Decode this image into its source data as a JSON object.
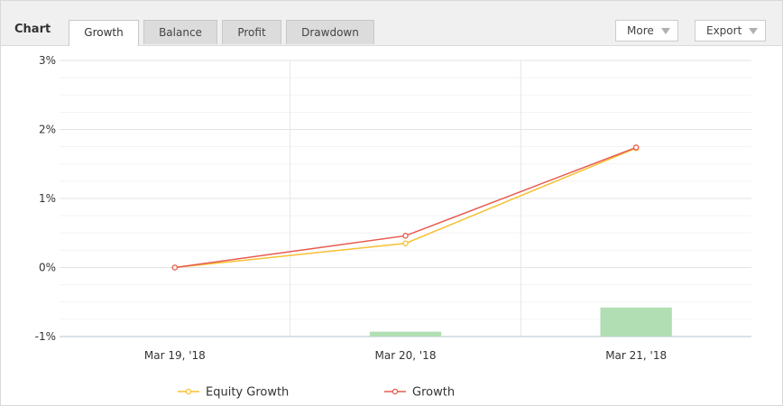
{
  "header": {
    "title": "Chart",
    "tabs": [
      {
        "label": "Growth",
        "active": true
      },
      {
        "label": "Balance",
        "active": false
      },
      {
        "label": "Profit",
        "active": false
      },
      {
        "label": "Drawdown",
        "active": false
      }
    ],
    "more_label": "More",
    "export_label": "Export"
  },
  "colors": {
    "equity": "#f5c031",
    "growth": "#e85a4f",
    "bars": "#b1deb2",
    "grid": "#e6e6e6",
    "axis": "#b7c6d0"
  },
  "chart_data": {
    "type": "line",
    "categories": [
      "Mar 19, '18",
      "Mar 20, '18",
      "Mar 21, '18"
    ],
    "ylim": [
      -1,
      3
    ],
    "y_ticks": [
      "3%",
      "2%",
      "1%",
      "0%",
      "-1%"
    ],
    "series": [
      {
        "name": "Equity Growth",
        "values": [
          0,
          0.35,
          1.73
        ]
      },
      {
        "name": "Growth",
        "values": [
          0,
          0.46,
          1.74
        ]
      }
    ],
    "bars": {
      "values": [
        null,
        0.07,
        0.42
      ]
    },
    "grid": true,
    "legend": "bottom-center"
  }
}
